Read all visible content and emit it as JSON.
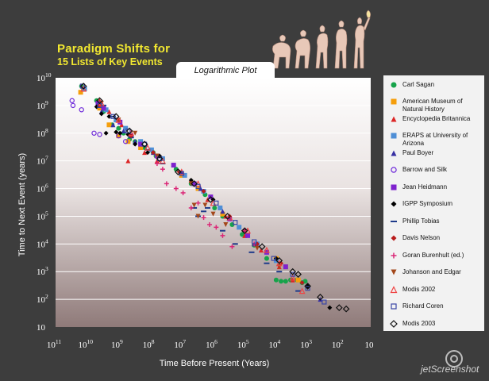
{
  "title_line1": "Paradigm Shifts for",
  "title_line2": "15 Lists of Key Events",
  "plot_tab": "Logarithmic Plot",
  "watermark": "jetScreenshot",
  "chart_data": {
    "type": "scatter",
    "xlabel": "Time Before Present (Years)",
    "ylabel": "Time to Next Event (years)",
    "x_scale": "log-reversed",
    "y_scale": "log",
    "xlim": [
      100000000000,
      10
    ],
    "ylim": [
      10,
      10000000000
    ],
    "x_ticks": [
      "10^11",
      "10^10",
      "10^9",
      "10^8",
      "10^7",
      "10^6",
      "10^5",
      "10^4",
      "10^3",
      "10^2",
      "10"
    ],
    "y_ticks": [
      "10^10",
      "10^9",
      "10^8",
      "10^7",
      "10^6",
      "10^5",
      "10^4",
      "10^3",
      "10^2",
      "10"
    ],
    "grid": "horizontal",
    "legend_position": "right",
    "series": [
      {
        "name": "Carl Sagan",
        "color": "#16a34a",
        "marker": "circle",
        "points": [
          [
            15000000000.0,
            5000000000.0
          ],
          [
            13000000000.0,
            4000000000.0
          ],
          [
            5000000000.0,
            1500000000.0
          ],
          [
            3000000000.0,
            600000000.0
          ],
          [
            1600000000.0,
            200000000.0
          ],
          [
            1000000000.0,
            150000000.0
          ],
          [
            700000000.0,
            100000000.0
          ],
          [
            450000000.0,
            60000000.0
          ],
          [
            300000000.0,
            50000000.0
          ],
          [
            150000000.0,
            30000000.0
          ],
          [
            80000000.0,
            20000000.0
          ],
          [
            65000000.0,
            15000000.0
          ],
          [
            15000000.0,
            5000000.0
          ],
          [
            5000000.0,
            1500000.0
          ],
          [
            3000000.0,
            1000000.0
          ],
          [
            1800000.0,
            600000.0
          ],
          [
            900000.0,
            200000.0
          ],
          [
            500000.0,
            100000.0
          ],
          [
            250000.0,
            50000.0
          ],
          [
            120000.0,
            22000.0
          ],
          [
            50000.0,
            9000.0
          ],
          [
            20000.0,
            3000.0
          ],
          [
            10000.0,
            500.0
          ],
          [
            7000.0,
            450.0
          ],
          [
            5000.0,
            450.0
          ],
          [
            3500.0,
            500.0
          ],
          [
            2200.0,
            500.0
          ],
          [
            1500.0,
            400.0
          ],
          [
            1200.0,
            450.0
          ]
        ]
      },
      {
        "name": "American Museum of Natural History",
        "color": "#f59e0b",
        "marker": "square",
        "points": [
          [
            16000000000.0,
            3000000000.0
          ],
          [
            4000000000.0,
            800000000.0
          ],
          [
            2000000000.0,
            200000000.0
          ],
          [
            1000000000.0,
            80000000.0
          ],
          [
            500000000.0,
            50000000.0
          ],
          [
            200000000.0,
            30000000.0
          ],
          [
            60000000.0,
            15000000.0
          ],
          [
            10000000.0,
            3000000.0
          ],
          [
            3000000.0,
            1000000.0
          ],
          [
            500000.0,
            120000.0
          ],
          [
            10000.0,
            3000.0
          ],
          [
            5000.0,
            1500.0
          ],
          [
            2000.0,
            500.0
          ]
        ]
      },
      {
        "name": "Encyclopedia Britannica",
        "color": "#dc2626",
        "marker": "triangle",
        "points": [
          [
            4000000000.0,
            1500000000.0
          ],
          [
            2000000000.0,
            600000000.0
          ],
          [
            800000000.0,
            200000000.0
          ],
          [
            500000000.0,
            10000000.0
          ],
          [
            150000000.0,
            20000000.0
          ],
          [
            60000000.0,
            10000000.0
          ],
          [
            5000000.0,
            2000000.0
          ],
          [
            1500000.0,
            400000.0
          ],
          [
            400000.0,
            100000.0
          ],
          [
            100000.0,
            20000.0
          ],
          [
            30000.0,
            6000.0
          ],
          [
            8000.0,
            1500.0
          ],
          [
            3000.0,
            500.0
          ]
        ]
      },
      {
        "name": "ERAPS at University of Arizona",
        "color": "#4f8fd6",
        "marker": "square",
        "points": [
          [
            12000000000.0,
            4000000000.0
          ],
          [
            4000000000.0,
            1200000000.0
          ],
          [
            2500000000.0,
            700000000.0
          ],
          [
            1200000000.0,
            300000000.0
          ],
          [
            600000000.0,
            150000000.0
          ],
          [
            200000000.0,
            50000000.0
          ],
          [
            90000000.0,
            25000000.0
          ],
          [
            40000000.0,
            12000000.0
          ],
          [
            8000000.0,
            3000000.0
          ],
          [
            2000000.0,
            800000.0
          ],
          [
            600000.0,
            200000.0
          ],
          [
            150000.0,
            40000.0
          ],
          [
            40000.0,
            10000.0
          ],
          [
            10000.0,
            2500.0
          ]
        ]
      },
      {
        "name": "Paul Boyer",
        "color": "#3730a3",
        "marker": "triangle",
        "points": [
          [
            4500000000.0,
            1000000000.0
          ],
          [
            3500000000.0,
            600000000.0
          ],
          [
            1500000000.0,
            200000000.0
          ],
          [
            700000000.0,
            120000000.0
          ],
          [
            300000000.0,
            50000000.0
          ],
          [
            80000000.0,
            20000000.0
          ],
          [
            10000000.0,
            4000000.0
          ],
          [
            2500000.0,
            1000000.0
          ],
          [
            500000.0,
            150000.0
          ],
          [
            50000.0,
            10000.0
          ],
          [
            5000.0,
            1500.0
          ],
          [
            400.0,
            100.0
          ]
        ]
      },
      {
        "name": "Barrow and Silk",
        "color": "#6d28d9",
        "marker": "circle-open",
        "points": [
          [
            30000000000.0,
            1500000000.0
          ],
          [
            28000000000.0,
            1000000000.0
          ],
          [
            15000000000.0,
            700000000.0
          ],
          [
            6000000000.0,
            100000000.0
          ],
          [
            4000000000.0,
            90000000.0
          ],
          [
            1000000000.0,
            80000000.0
          ],
          [
            600000000.0,
            50000000.0
          ]
        ]
      },
      {
        "name": "Jean Heidmann",
        "color": "#7e22ce",
        "marker": "square",
        "points": [
          [
            4500000000.0,
            1200000000.0
          ],
          [
            3000000000.0,
            800000000.0
          ],
          [
            900000000.0,
            250000000.0
          ],
          [
            400000000.0,
            80000000.0
          ],
          [
            200000000.0,
            40000000.0
          ],
          [
            60000000.0,
            15000000.0
          ],
          [
            18000000.0,
            7000000.0
          ],
          [
            4000000.0,
            1500000.0
          ],
          [
            1200000.0,
            500000.0
          ],
          [
            300000.0,
            80000.0
          ],
          [
            80000.0,
            20000.0
          ],
          [
            20000.0,
            5000.0
          ],
          [
            5000.0,
            1500.0
          ]
        ]
      },
      {
        "name": "IGPP Symposium",
        "color": "#000000",
        "marker": "diamond",
        "points": [
          [
            5000000000.0,
            900000000.0
          ],
          [
            3500000000.0,
            500000000.0
          ],
          [
            2500000000.0,
            100000000.0
          ],
          [
            2000000000.0,
            400000000.0
          ],
          [
            1200000000.0,
            110000000.0
          ],
          [
            900000000.0,
            100000000.0
          ],
          [
            500000000.0,
            90000000.0
          ],
          [
            300000000.0,
            40000000.0
          ],
          [
            120000000.0,
            20000000.0
          ],
          [
            50000000.0,
            15000000.0
          ],
          [
            5000000.0,
            2000000.0
          ],
          [
            1000000.0,
            400000.0
          ],
          [
            100000.0,
            30000.0
          ],
          [
            10000.0,
            3000.0
          ],
          [
            1000.0,
            300.0
          ],
          [
            200.0,
            50
          ]
        ]
      },
      {
        "name": "Phillip Tobias",
        "color": "#1e3a8a",
        "marker": "dash",
        "points": [
          [
            3000000000.0,
            1000000000.0
          ],
          [
            1500000000.0,
            400000000.0
          ],
          [
            400000000.0,
            70000000.0
          ],
          [
            120000000.0,
            25000000.0
          ],
          [
            40000000.0,
            8000000.0
          ],
          [
            4000000.0,
            200000.0
          ],
          [
            3000000.0,
            100000.0
          ],
          [
            2000000.0,
            150000.0
          ],
          [
            1500000.0,
            200000.0
          ],
          [
            500000.0,
            30000.0
          ],
          [
            200000.0,
            10000.0
          ],
          [
            60000.0,
            5000.0
          ],
          [
            20000.0,
            2000.0
          ],
          [
            8000.0,
            1000.0
          ],
          [
            2000.0,
            200.0
          ]
        ]
      },
      {
        "name": "Davis Nelson",
        "color": "#b91c1c",
        "marker": "diamond",
        "points": [
          [
            4000000000.0,
            1000000000.0
          ],
          [
            1000000000.0,
            300000000.0
          ],
          [
            400000000.0,
            80000000.0
          ],
          [
            80000000.0,
            20000000.0
          ],
          [
            12000000.0,
            4000000.0
          ],
          [
            2000000.0,
            800000.0
          ],
          [
            300000.0,
            100000.0
          ],
          [
            40000.0,
            10000.0
          ],
          [
            7000.0,
            2000.0
          ],
          [
            1500.0,
            400.0
          ]
        ]
      },
      {
        "name": "Goran Burenhult (ed.)",
        "color": "#db2777",
        "marker": "plus",
        "points": [
          [
            60000000.0,
            8000000.0
          ],
          [
            40000000.0,
            5000000.0
          ],
          [
            30000000.0,
            1500000.0
          ],
          [
            15000000.0,
            1000000.0
          ],
          [
            9000000.0,
            700000.0
          ],
          [
            5000000.0,
            200000.0
          ],
          [
            3000000.0,
            300000.0
          ],
          [
            2000000.0,
            90000.0
          ],
          [
            1300000.0,
            50000.0
          ],
          [
            800000.0,
            40000.0
          ],
          [
            500000.0,
            20000.0
          ],
          [
            250000.0,
            8000.0
          ],
          [
            100000.0,
            30000.0
          ],
          [
            50000.0,
            10000.0
          ]
        ]
      },
      {
        "name": "Johanson and Edgar",
        "color": "#a3471a",
        "marker": "triangle-down",
        "points": [
          [
            3500000000.0,
            1200000000.0
          ],
          [
            1000000000.0,
            300000000.0
          ],
          [
            300000000.0,
            100000000.0
          ],
          [
            60000000.0,
            15000000.0
          ],
          [
            5000000.0,
            1500000.0
          ],
          [
            4000000.0,
            250000.0
          ],
          [
            3000000.0,
            100000.0
          ],
          [
            1800000.0,
            250000.0
          ],
          [
            1000000.0,
            120000.0
          ],
          [
            400000.0,
            50000.0
          ],
          [
            40000.0,
            7000.0
          ],
          [
            8000.0,
            1500.0
          ]
        ]
      },
      {
        "name": "Modis 2002",
        "color": "#ef4444",
        "marker": "triangle-open",
        "points": [
          [
            13000000000.0,
            4000000000.0
          ],
          [
            3500000000.0,
            1200000000.0
          ],
          [
            1000000000.0,
            300000000.0
          ],
          [
            400000000.0,
            100000000.0
          ],
          [
            120000000.0,
            30000000.0
          ],
          [
            40000000.0,
            10000000.0
          ],
          [
            10000000.0,
            4000000.0
          ],
          [
            3000000.0,
            1500000.0
          ],
          [
            1000000.0,
            300000.0
          ],
          [
            300000.0,
            90000.0
          ],
          [
            80000.0,
            30000.0
          ],
          [
            20000.0,
            6000.0
          ],
          [
            8000.0,
            2000.0
          ],
          [
            3000.0,
            600.0
          ],
          [
            1500.0,
            200.0
          ]
        ]
      },
      {
        "name": "Richard Coren",
        "color": "#3b47a6",
        "marker": "square-open",
        "points": [
          [
            14000000000.0,
            5000000000.0
          ],
          [
            4000000000.0,
            1000000000.0
          ],
          [
            1500000000.0,
            400000000.0
          ],
          [
            500000000.0,
            120000000.0
          ],
          [
            150000000.0,
            40000000.0
          ],
          [
            50000000.0,
            12000000.0
          ],
          [
            10000000.0,
            3500000.0
          ],
          [
            3000000.0,
            1200000.0
          ],
          [
            800000.0,
            300000.0
          ],
          [
            200000.0,
            60000.0
          ],
          [
            50000.0,
            12000.0
          ],
          [
            12000.0,
            3000.0
          ],
          [
            3000.0,
            800.0
          ],
          [
            1000.0,
            250.0
          ],
          [
            300.0,
            80
          ]
        ]
      },
      {
        "name": "Modis 2003",
        "color": "#111111",
        "marker": "diamond-open",
        "points": [
          [
            13000000000.0,
            5000000000.0
          ],
          [
            4000000000.0,
            1500000000.0
          ],
          [
            1200000000.0,
            400000000.0
          ],
          [
            450000000.0,
            120000000.0
          ],
          [
            150000000.0,
            40000000.0
          ],
          [
            50000000.0,
            12000000.0
          ],
          [
            13000000.0,
            4000000.0
          ],
          [
            4000000.0,
            1500000.0
          ],
          [
            1200000.0,
            400000.0
          ],
          [
            350000.0,
            100000.0
          ],
          [
            100000.0,
            30000.0
          ],
          [
            28000.0,
            8000.0
          ],
          [
            8000.0,
            2500.0
          ],
          [
            3000.0,
            1000.0
          ],
          [
            2000.0,
            800.0
          ],
          [
            1000.0,
            300.0
          ],
          [
            400.0,
            120.0
          ],
          [
            100.0,
            50
          ],
          [
            60,
            45
          ]
        ]
      }
    ]
  }
}
